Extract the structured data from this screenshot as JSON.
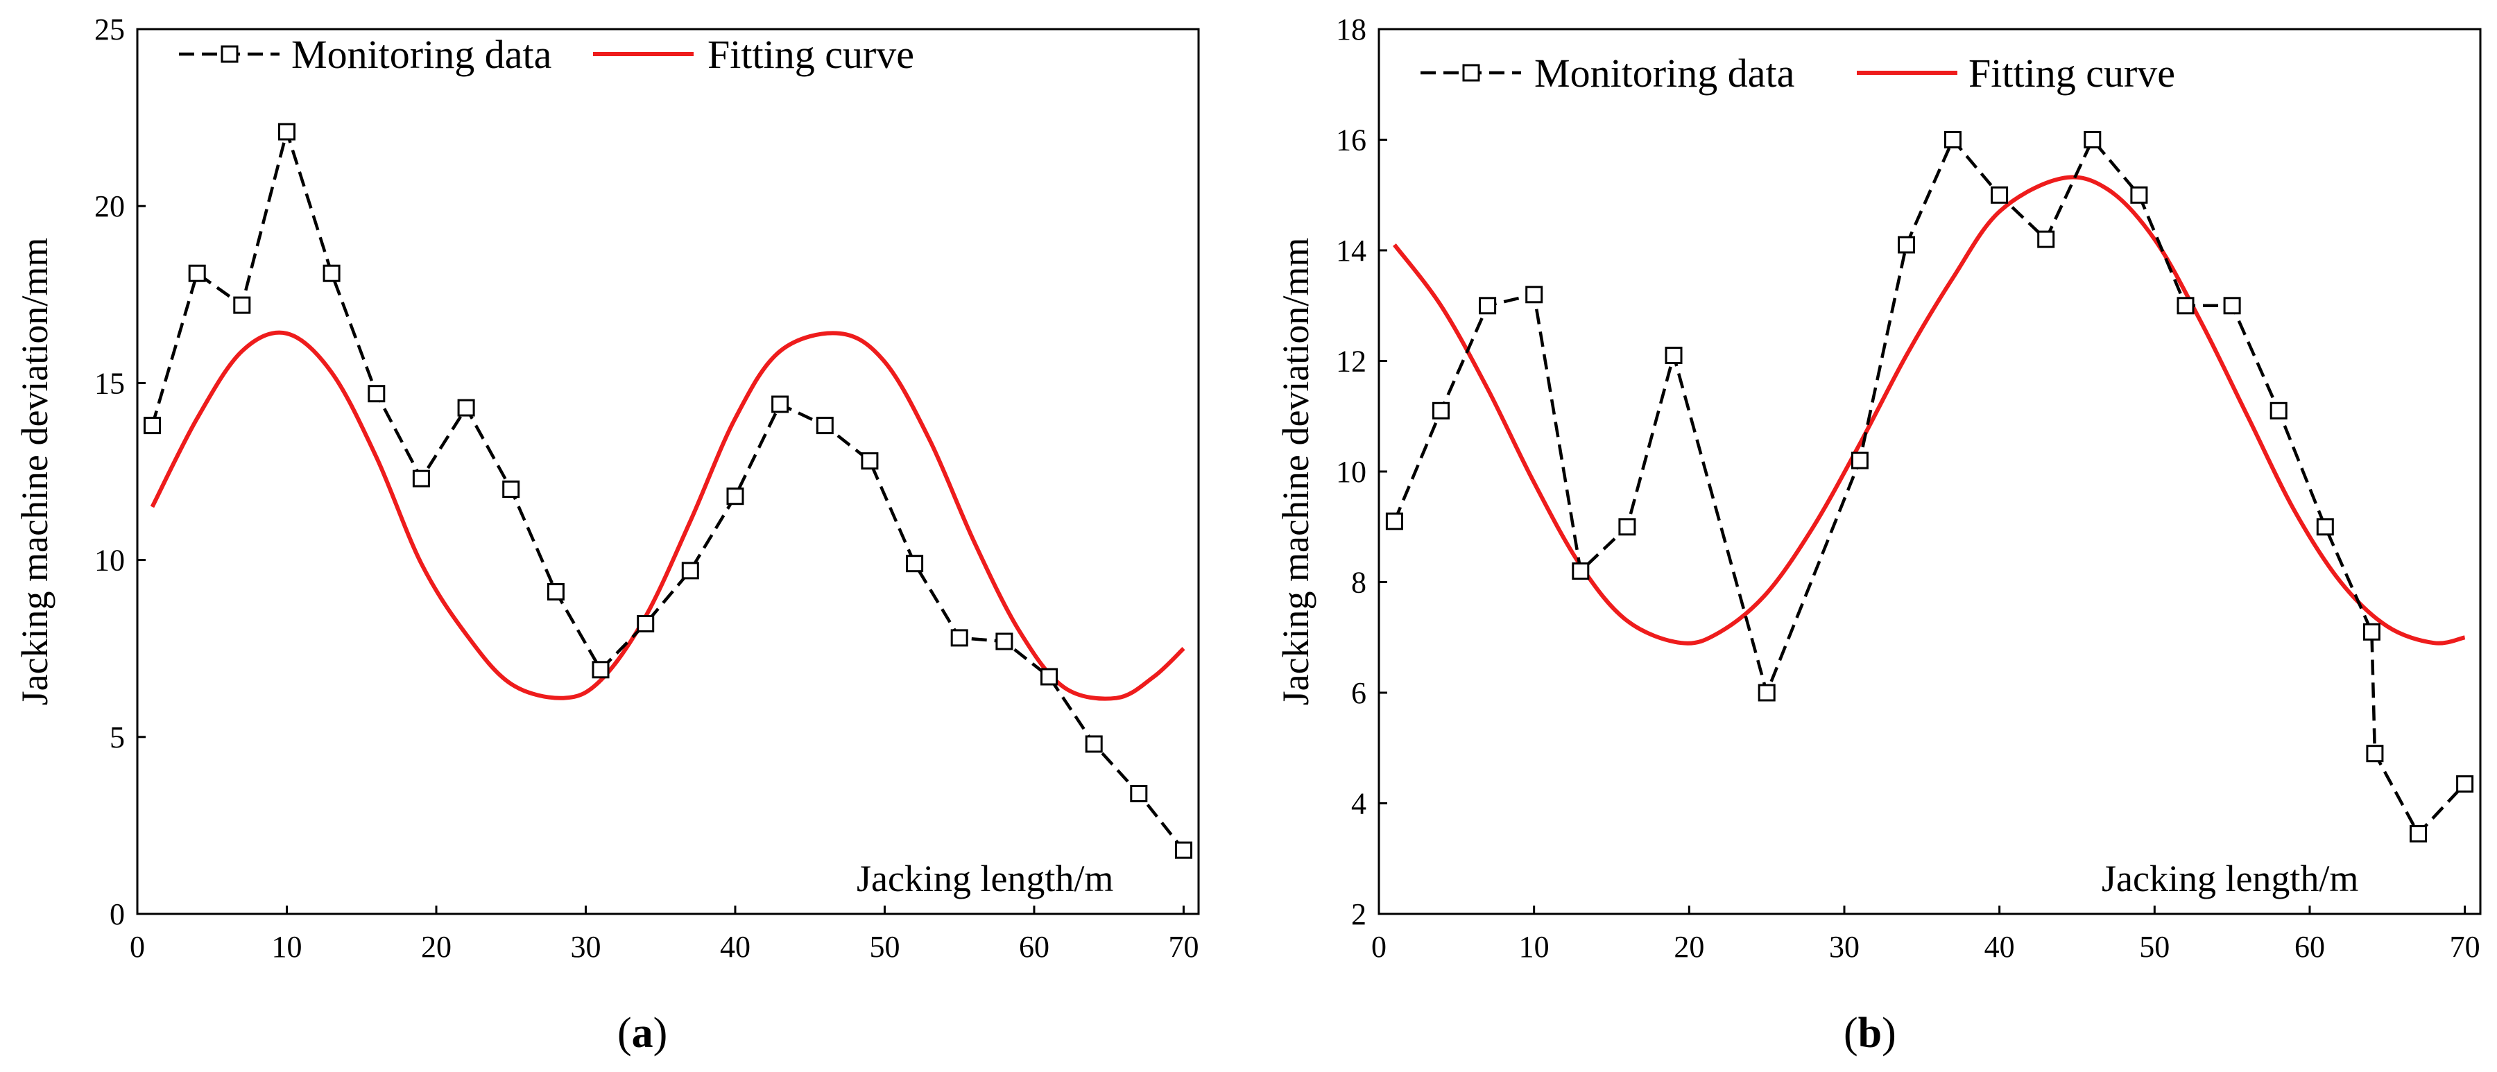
{
  "chart_data": [
    {
      "type": "line",
      "panel_label": "a",
      "xlabel": "Jacking length/m",
      "ylabel": "Jacking machine deviation/mm",
      "xlim": [
        0,
        71
      ],
      "ylim": [
        0,
        25
      ],
      "xticks": [
        0,
        10,
        20,
        30,
        40,
        50,
        60,
        70
      ],
      "yticks": [
        0,
        5,
        10,
        15,
        20,
        25
      ],
      "legend_position": "top-left",
      "series": [
        {
          "name": "Monitoring data",
          "style": "dashed-black-square-markers",
          "color": "#000000",
          "x": [
            1,
            4,
            7,
            10,
            13,
            16,
            19,
            22,
            25,
            28,
            31,
            34,
            37,
            40,
            43,
            46,
            49,
            52,
            55,
            58,
            61,
            64,
            67,
            70
          ],
          "y": [
            13.8,
            18.1,
            17.2,
            22.1,
            18.1,
            14.7,
            12.3,
            14.3,
            12.0,
            9.1,
            6.9,
            8.2,
            9.7,
            11.8,
            14.4,
            13.8,
            12.8,
            9.9,
            7.8,
            7.7,
            6.7,
            4.8,
            3.4,
            1.8
          ]
        },
        {
          "name": "Fitting curve",
          "style": "solid-red",
          "color": "#ee1c1c",
          "x": [
            1,
            4,
            7,
            10,
            13,
            16,
            19,
            22,
            25,
            28.5,
            31,
            34,
            37,
            40,
            43,
            47,
            50,
            53,
            56,
            59,
            62,
            65.5,
            68,
            70
          ],
          "y": [
            11.5,
            14.0,
            15.9,
            16.4,
            15.3,
            12.9,
            9.9,
            7.9,
            6.5,
            6.1,
            6.6,
            8.4,
            11.1,
            14.0,
            15.9,
            16.4,
            15.6,
            13.4,
            10.5,
            8.0,
            6.4,
            6.1,
            6.7,
            7.5
          ]
        }
      ]
    },
    {
      "type": "line",
      "panel_label": "b",
      "xlabel": "Jacking length/m",
      "ylabel": "Jacking machine deviation/mm",
      "xlim": [
        0,
        71
      ],
      "ylim": [
        2,
        18
      ],
      "xticks": [
        0,
        10,
        20,
        30,
        40,
        50,
        60,
        70
      ],
      "yticks": [
        2,
        4,
        6,
        8,
        10,
        12,
        14,
        16,
        18
      ],
      "legend_position": "top-left",
      "series": [
        {
          "name": "Monitoring data",
          "style": "dashed-black-square-markers",
          "color": "#000000",
          "x": [
            1,
            4,
            7,
            10,
            13,
            16,
            19,
            25,
            31,
            34,
            37,
            40,
            43,
            46,
            49,
            52,
            55,
            58,
            61,
            64,
            64.2,
            67,
            70
          ],
          "y": [
            9.1,
            11.1,
            13.0,
            13.2,
            8.2,
            9.0,
            12.1,
            6.0,
            10.2,
            14.1,
            16.0,
            15.0,
            14.2,
            16.0,
            15.0,
            13.0,
            13.0,
            11.1,
            9.0,
            7.1,
            4.9,
            3.45,
            4.35
          ]
        },
        {
          "name": "Fitting curve",
          "style": "solid-red",
          "color": "#ee1c1c",
          "x": [
            1,
            4,
            7,
            10,
            13,
            16,
            19.5,
            22,
            25,
            28,
            31,
            34,
            37,
            40,
            44,
            47,
            50,
            53,
            56,
            59,
            62,
            65,
            68,
            70
          ],
          "y": [
            14.1,
            13.0,
            11.5,
            9.8,
            8.3,
            7.3,
            6.9,
            7.1,
            7.8,
            9.0,
            10.5,
            12.1,
            13.5,
            14.7,
            15.3,
            15.1,
            14.2,
            12.7,
            11.0,
            9.3,
            8.0,
            7.2,
            6.9,
            7.0
          ]
        }
      ]
    }
  ]
}
